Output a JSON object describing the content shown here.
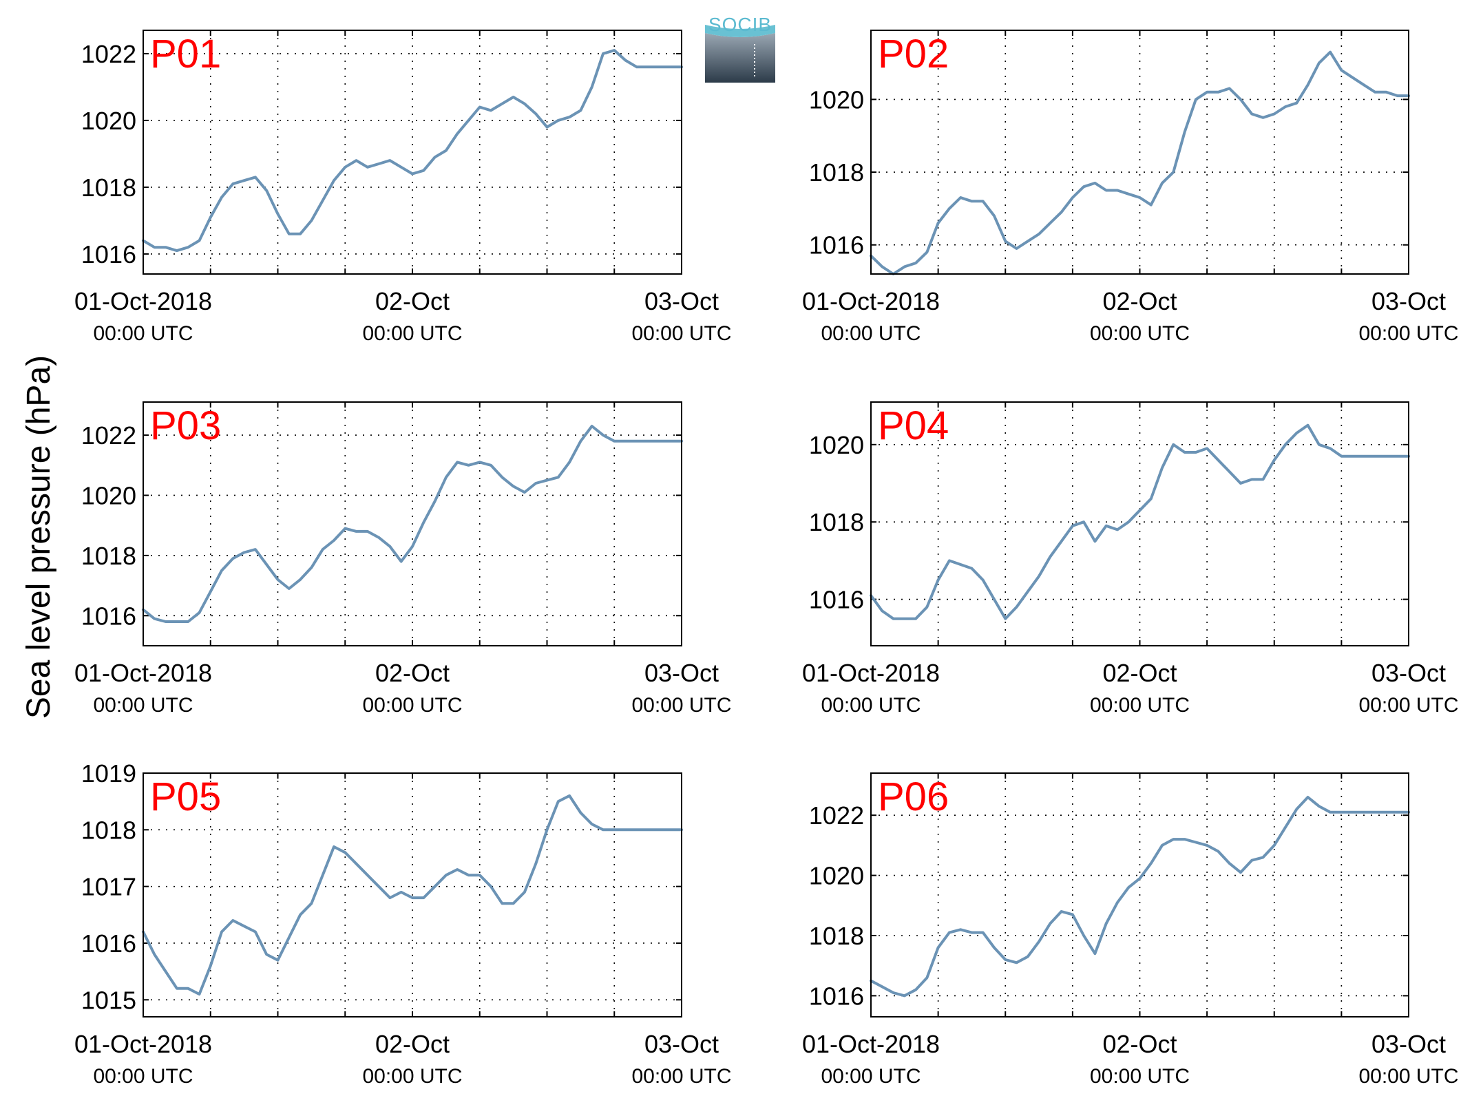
{
  "figure": {
    "ylabel": "Sea level pressure (hPa)",
    "logo_text": "SOCIB",
    "x_ticks": [
      {
        "label": "01-Oct-2018",
        "sub": "00:00 UTC"
      },
      {
        "label": "02-Oct",
        "sub": "00:00 UTC"
      },
      {
        "label": "03-Oct",
        "sub": "00:00 UTC"
      }
    ],
    "colors": {
      "line": "#6b93b5",
      "title": "#ff0000",
      "axis": "#000000",
      "grid": "#000000"
    }
  },
  "chart_data": [
    {
      "type": "line",
      "title": "P01",
      "xlabel": "",
      "ylabel": "Sea level pressure (hPa)",
      "x_unit": "hours since 01-Oct-2018 00:00 UTC",
      "xlim": [
        0,
        48
      ],
      "ylim": [
        1015.4,
        1022.7
      ],
      "yticks": [
        1016,
        1018,
        1020,
        1022
      ],
      "grid": true,
      "x": [
        0,
        1,
        2,
        3,
        4,
        5,
        6,
        7,
        8,
        9,
        10,
        11,
        12,
        13,
        14,
        15,
        16,
        17,
        18,
        19,
        20,
        21,
        22,
        23,
        24,
        25,
        26,
        27,
        28,
        29,
        30,
        31,
        32,
        33,
        34,
        35,
        36,
        37,
        38,
        39,
        40,
        41,
        42,
        43,
        44,
        45,
        46,
        47,
        48
      ],
      "y": [
        1016.4,
        1016.2,
        1016.2,
        1016.1,
        1016.2,
        1016.4,
        1017.1,
        1017.7,
        1018.1,
        1018.2,
        1018.3,
        1017.9,
        1017.2,
        1016.6,
        1016.6,
        1017.0,
        1017.6,
        1018.2,
        1018.6,
        1018.8,
        1018.6,
        1018.7,
        1018.8,
        1018.6,
        1018.4,
        1018.5,
        1018.9,
        1019.1,
        1019.6,
        1020.0,
        1020.4,
        1020.3,
        1020.5,
        1020.7,
        1020.5,
        1020.2,
        1019.8,
        1020.0,
        1020.1,
        1020.3,
        1021.0,
        1022.0,
        1022.1,
        1021.8,
        1021.6,
        1021.6,
        1021.6,
        1021.6,
        1021.6
      ]
    },
    {
      "type": "line",
      "title": "P02",
      "xlabel": "",
      "ylabel": "Sea level pressure (hPa)",
      "x_unit": "hours since 01-Oct-2018 00:00 UTC",
      "xlim": [
        0,
        48
      ],
      "ylim": [
        1015.2,
        1021.9
      ],
      "yticks": [
        1016,
        1018,
        1020
      ],
      "grid": true,
      "x": [
        0,
        1,
        2,
        3,
        4,
        5,
        6,
        7,
        8,
        9,
        10,
        11,
        12,
        13,
        14,
        15,
        16,
        17,
        18,
        19,
        20,
        21,
        22,
        23,
        24,
        25,
        26,
        27,
        28,
        29,
        30,
        31,
        32,
        33,
        34,
        35,
        36,
        37,
        38,
        39,
        40,
        41,
        42,
        43,
        44,
        45,
        46,
        47,
        48
      ],
      "y": [
        1015.7,
        1015.4,
        1015.2,
        1015.4,
        1015.5,
        1015.8,
        1016.6,
        1017.0,
        1017.3,
        1017.2,
        1017.2,
        1016.8,
        1016.1,
        1015.9,
        1016.1,
        1016.3,
        1016.6,
        1016.9,
        1017.3,
        1017.6,
        1017.7,
        1017.5,
        1017.5,
        1017.4,
        1017.3,
        1017.1,
        1017.7,
        1018.0,
        1019.1,
        1020.0,
        1020.2,
        1020.2,
        1020.3,
        1020.0,
        1019.6,
        1019.5,
        1019.6,
        1019.8,
        1019.9,
        1020.4,
        1021.0,
        1021.3,
        1020.8,
        1020.6,
        1020.4,
        1020.2,
        1020.2,
        1020.1,
        1020.1
      ]
    },
    {
      "type": "line",
      "title": "P03",
      "xlabel": "",
      "ylabel": "Sea level pressure (hPa)",
      "x_unit": "hours since 01-Oct-2018 00:00 UTC",
      "xlim": [
        0,
        48
      ],
      "ylim": [
        1015.0,
        1023.1
      ],
      "yticks": [
        1016,
        1018,
        1020,
        1022
      ],
      "grid": true,
      "x": [
        0,
        1,
        2,
        3,
        4,
        5,
        6,
        7,
        8,
        9,
        10,
        11,
        12,
        13,
        14,
        15,
        16,
        17,
        18,
        19,
        20,
        21,
        22,
        23,
        24,
        25,
        26,
        27,
        28,
        29,
        30,
        31,
        32,
        33,
        34,
        35,
        36,
        37,
        38,
        39,
        40,
        41,
        42,
        43,
        44,
        45,
        46,
        47,
        48
      ],
      "y": [
        1016.2,
        1015.9,
        1015.8,
        1015.8,
        1015.8,
        1016.1,
        1016.8,
        1017.5,
        1017.9,
        1018.1,
        1018.2,
        1017.7,
        1017.2,
        1016.9,
        1017.2,
        1017.6,
        1018.2,
        1018.5,
        1018.9,
        1018.8,
        1018.8,
        1018.6,
        1018.3,
        1017.8,
        1018.3,
        1019.1,
        1019.8,
        1020.6,
        1021.1,
        1021.0,
        1021.1,
        1021.0,
        1020.6,
        1020.3,
        1020.1,
        1020.4,
        1020.5,
        1020.6,
        1021.1,
        1021.8,
        1022.3,
        1022.0,
        1021.8,
        1021.8,
        1021.8,
        1021.8,
        1021.8,
        1021.8,
        1021.8
      ]
    },
    {
      "type": "line",
      "title": "P04",
      "xlabel": "",
      "ylabel": "Sea level pressure (hPa)",
      "x_unit": "hours since 01-Oct-2018 00:00 UTC",
      "xlim": [
        0,
        48
      ],
      "ylim": [
        1014.8,
        1021.1
      ],
      "yticks": [
        1016,
        1018,
        1020
      ],
      "grid": true,
      "x": [
        0,
        1,
        2,
        3,
        4,
        5,
        6,
        7,
        8,
        9,
        10,
        11,
        12,
        13,
        14,
        15,
        16,
        17,
        18,
        19,
        20,
        21,
        22,
        23,
        24,
        25,
        26,
        27,
        28,
        29,
        30,
        31,
        32,
        33,
        34,
        35,
        36,
        37,
        38,
        39,
        40,
        41,
        42,
        43,
        44,
        45,
        46,
        47,
        48
      ],
      "y": [
        1016.1,
        1015.7,
        1015.5,
        1015.5,
        1015.5,
        1015.8,
        1016.5,
        1017.0,
        1016.9,
        1016.8,
        1016.5,
        1016.0,
        1015.5,
        1015.8,
        1016.2,
        1016.6,
        1017.1,
        1017.5,
        1017.9,
        1018.0,
        1017.5,
        1017.9,
        1017.8,
        1018.0,
        1018.3,
        1018.6,
        1019.4,
        1020.0,
        1019.8,
        1019.8,
        1019.9,
        1019.6,
        1019.3,
        1019.0,
        1019.1,
        1019.1,
        1019.6,
        1020.0,
        1020.3,
        1020.5,
        1020.0,
        1019.9,
        1019.7,
        1019.7,
        1019.7,
        1019.7,
        1019.7,
        1019.7,
        1019.7
      ]
    },
    {
      "type": "line",
      "title": "P05",
      "xlabel": "",
      "ylabel": "Sea level pressure (hPa)",
      "x_unit": "hours since 01-Oct-2018 00:00 UTC",
      "xlim": [
        0,
        48
      ],
      "ylim": [
        1014.7,
        1019.0
      ],
      "yticks": [
        1015,
        1016,
        1017,
        1018,
        1019
      ],
      "grid": true,
      "x": [
        0,
        1,
        2,
        3,
        4,
        5,
        6,
        7,
        8,
        9,
        10,
        11,
        12,
        13,
        14,
        15,
        16,
        17,
        18,
        19,
        20,
        21,
        22,
        23,
        24,
        25,
        26,
        27,
        28,
        29,
        30,
        31,
        32,
        33,
        34,
        35,
        36,
        37,
        38,
        39,
        40,
        41,
        42,
        43,
        44,
        45,
        46,
        47,
        48
      ],
      "y": [
        1016.2,
        1015.8,
        1015.5,
        1015.2,
        1015.2,
        1015.1,
        1015.6,
        1016.2,
        1016.4,
        1016.3,
        1016.2,
        1015.8,
        1015.7,
        1016.1,
        1016.5,
        1016.7,
        1017.2,
        1017.7,
        1017.6,
        1017.4,
        1017.2,
        1017.0,
        1016.8,
        1016.9,
        1016.8,
        1016.8,
        1017.0,
        1017.2,
        1017.3,
        1017.2,
        1017.2,
        1017.0,
        1016.7,
        1016.7,
        1016.9,
        1017.4,
        1018.0,
        1018.5,
        1018.6,
        1018.3,
        1018.1,
        1018.0,
        1018.0,
        1018.0,
        1018.0,
        1018.0,
        1018.0,
        1018.0,
        1018.0
      ]
    },
    {
      "type": "line",
      "title": "P06",
      "xlabel": "",
      "ylabel": "Sea level pressure (hPa)",
      "x_unit": "hours since 01-Oct-2018 00:00 UTC",
      "xlim": [
        0,
        48
      ],
      "ylim": [
        1015.3,
        1023.4
      ],
      "yticks": [
        1016,
        1018,
        1020,
        1022
      ],
      "grid": true,
      "x": [
        0,
        1,
        2,
        3,
        4,
        5,
        6,
        7,
        8,
        9,
        10,
        11,
        12,
        13,
        14,
        15,
        16,
        17,
        18,
        19,
        20,
        21,
        22,
        23,
        24,
        25,
        26,
        27,
        28,
        29,
        30,
        31,
        32,
        33,
        34,
        35,
        36,
        37,
        38,
        39,
        40,
        41,
        42,
        43,
        44,
        45,
        46,
        47,
        48
      ],
      "y": [
        1016.5,
        1016.3,
        1016.1,
        1016.0,
        1016.2,
        1016.6,
        1017.6,
        1018.1,
        1018.2,
        1018.1,
        1018.1,
        1017.6,
        1017.2,
        1017.1,
        1017.3,
        1017.8,
        1018.4,
        1018.8,
        1018.7,
        1018.0,
        1017.4,
        1018.4,
        1019.1,
        1019.6,
        1019.9,
        1020.4,
        1021.0,
        1021.2,
        1021.2,
        1021.1,
        1021.0,
        1020.8,
        1020.4,
        1020.1,
        1020.5,
        1020.6,
        1021.0,
        1021.6,
        1022.2,
        1022.6,
        1022.3,
        1022.1,
        1022.1,
        1022.1,
        1022.1,
        1022.1,
        1022.1,
        1022.1,
        1022.1
      ]
    }
  ]
}
